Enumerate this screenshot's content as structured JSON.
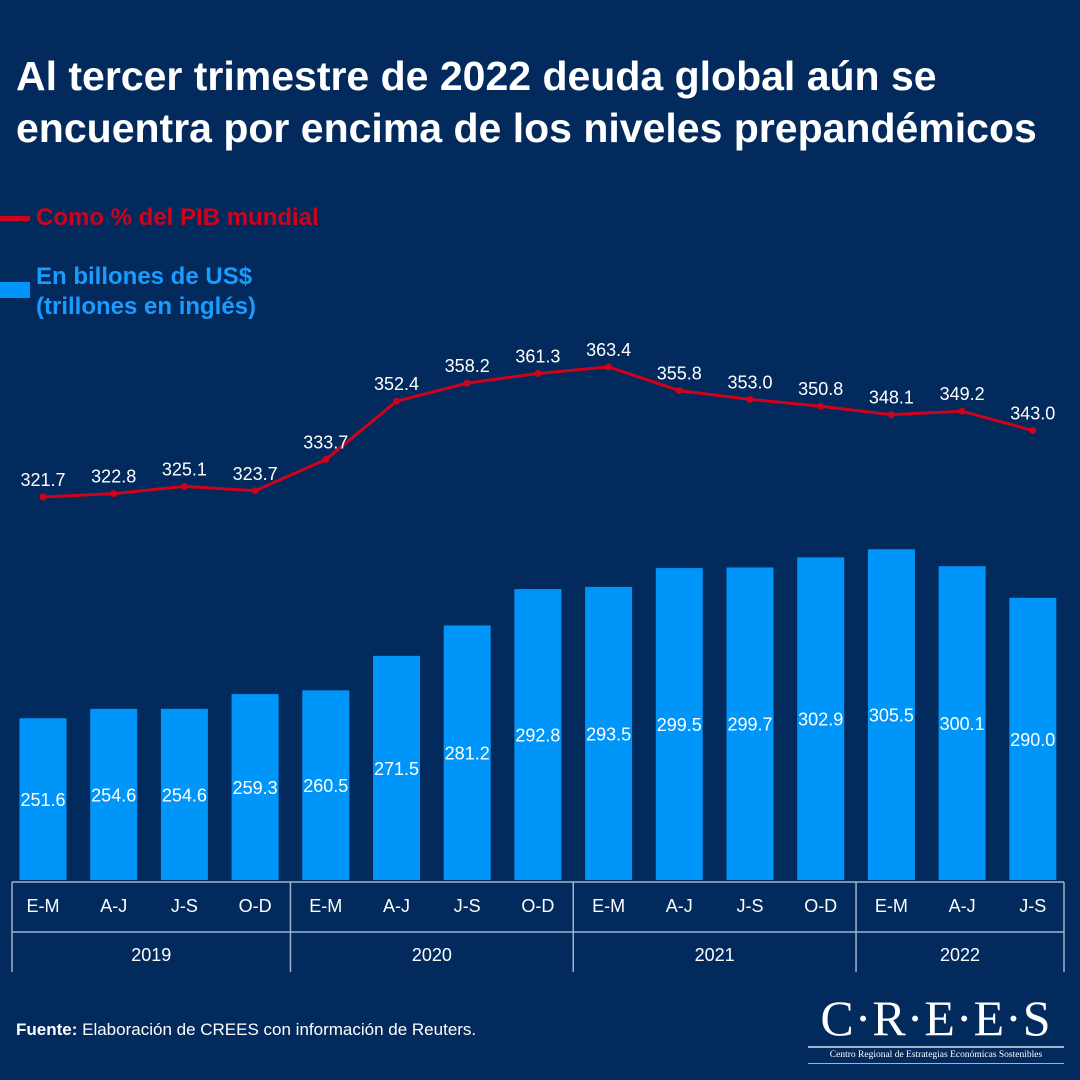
{
  "title": "Al tercer trimestre de 2022 deuda global aún se encuentra por encima de los niveles prepandémicos",
  "legend": {
    "line_label": "Como % del PIB mundial",
    "bar_label_1": "En billones de US$",
    "bar_label_2": "(trillones en inglés)"
  },
  "source": {
    "bold": "Fuente:",
    "text": " Elaboración de CREES con información de Reuters."
  },
  "logo": {
    "main": "C·R·E·E·S",
    "sub": "Centro Regional de Estrategias Económicas Sostenibles"
  },
  "colors": {
    "background": "#022a5c",
    "bars": "#0095f8",
    "line": "#d0021b",
    "legend_bars_text": "#1a9cff"
  },
  "chart_data": {
    "type": "bar+line",
    "categories": [
      "E-M",
      "A-J",
      "J-S",
      "O-D",
      "E-M",
      "A-J",
      "J-S",
      "O-D",
      "E-M",
      "A-J",
      "J-S",
      "O-D",
      "E-M",
      "A-J",
      "J-S"
    ],
    "groups": [
      {
        "label": "2019",
        "count": 4
      },
      {
        "label": "2020",
        "count": 4
      },
      {
        "label": "2021",
        "count": 4
      },
      {
        "label": "2022",
        "count": 3
      }
    ],
    "series": [
      {
        "name": "En billones de US$ (trillones en inglés)",
        "type": "bar",
        "values": [
          251.6,
          254.6,
          254.6,
          259.3,
          260.5,
          271.5,
          281.2,
          292.8,
          293.5,
          299.5,
          299.7,
          302.9,
          305.5,
          300.1,
          290.0
        ]
      },
      {
        "name": "Como % del PIB mundial",
        "type": "line",
        "values": [
          321.7,
          322.8,
          325.1,
          323.7,
          333.7,
          352.4,
          358.2,
          361.3,
          363.4,
          355.8,
          353.0,
          350.8,
          348.1,
          349.2,
          343.0
        ]
      }
    ],
    "grid": false,
    "legend_position": "top-left"
  }
}
